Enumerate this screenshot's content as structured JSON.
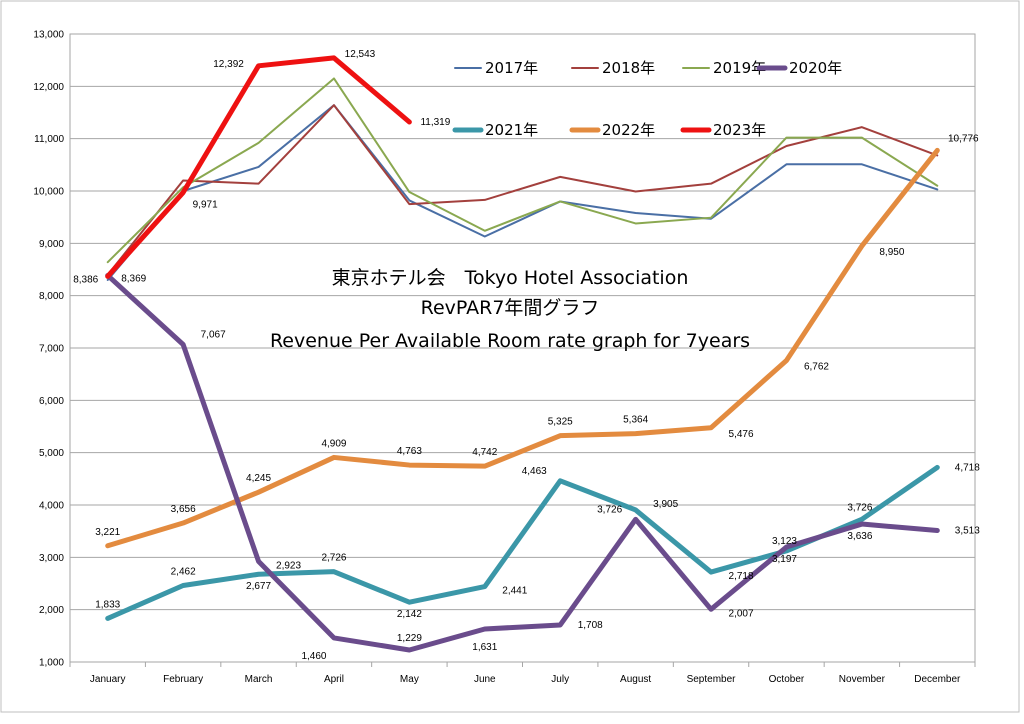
{
  "chart_data": {
    "type": "line",
    "title": "東京ホテル会　Tokyo Hotel Association",
    "subtitle": "RevPAR7年間グラフ",
    "subtitle2": "Revenue Per Available Room rate graph for 7years",
    "xlabel": "",
    "ylabel": "",
    "ylim": [
      1000,
      13000
    ],
    "yticks": [
      1000,
      2000,
      3000,
      4000,
      5000,
      6000,
      7000,
      8000,
      9000,
      10000,
      11000,
      12000,
      13000
    ],
    "ytick_labels": [
      "1,000",
      "2,000",
      "3,000",
      "4,000",
      "5,000",
      "6,000",
      "7,000",
      "8,000",
      "9,000",
      "10,000",
      "11,000",
      "12,000",
      "13,000"
    ],
    "grid": "horizontal",
    "legend_position": "top-right",
    "categories": [
      "January",
      "February",
      "March",
      "April",
      "May",
      "June",
      "July",
      "August",
      "September",
      "October",
      "November",
      "December"
    ],
    "series": [
      {
        "name": "2017年",
        "color": "#4a6fa5",
        "width": 2,
        "values": [
          8300,
          10000,
          10460,
          11640,
          9820,
          9130,
          9800,
          9580,
          9470,
          10510,
          10510,
          10030
        ]
      },
      {
        "name": "2018年",
        "color": "#a3403d",
        "width": 2,
        "values": [
          8400,
          10200,
          10140,
          11640,
          9750,
          9830,
          10270,
          9990,
          10140,
          10860,
          11220,
          10680
        ]
      },
      {
        "name": "2019年",
        "color": "#8aa850",
        "width": 2,
        "values": [
          8640,
          10070,
          10920,
          12150,
          9980,
          9240,
          9800,
          9380,
          9490,
          11020,
          11020,
          10100
        ]
      },
      {
        "name": "2020年",
        "color": "#6a4c8c",
        "width": 5,
        "values": [
          8386,
          7067,
          2923,
          1460,
          1229,
          1631,
          1708,
          3726,
          2007,
          3197,
          3636,
          3513
        ],
        "labels": [
          "8,386",
          "7,067",
          "2,923",
          "1,460",
          "1,229",
          "1,631",
          "1,708",
          "3,726",
          "2,007",
          "3,197",
          "3,636",
          "3,513"
        ]
      },
      {
        "name": "2021年",
        "color": "#3b97a8",
        "width": 5,
        "values": [
          1833,
          2462,
          2677,
          2726,
          2142,
          2441,
          4463,
          3905,
          2718,
          3123,
          3726,
          4718
        ],
        "labels": [
          "1,833",
          "2,462",
          "2,677",
          "2,726",
          "2,142",
          "2,441",
          "4,463",
          "3,905",
          "2,718",
          "3,123",
          "3,726",
          "4,718"
        ]
      },
      {
        "name": "2022年",
        "color": "#e38b3f",
        "width": 5,
        "values": [
          3221,
          3656,
          4245,
          4909,
          4763,
          4742,
          5325,
          5364,
          5476,
          6762,
          8950,
          10776
        ],
        "labels": [
          "3,221",
          "3,656",
          "4,245",
          "4,909",
          "4,763",
          "4,742",
          "5,325",
          "5,364",
          "5,476",
          "6,762",
          "8,950",
          "10,776"
        ]
      },
      {
        "name": "2023年",
        "color": "#ee1111",
        "width": 5,
        "values": [
          8369,
          9971,
          12392,
          12543,
          11319,
          null,
          null,
          null,
          null,
          null,
          null,
          null
        ],
        "labels": [
          "8,369",
          "9,971",
          "12,392",
          "12,543",
          "11,319",
          null,
          null,
          null,
          null,
          null,
          null,
          null
        ]
      }
    ]
  }
}
